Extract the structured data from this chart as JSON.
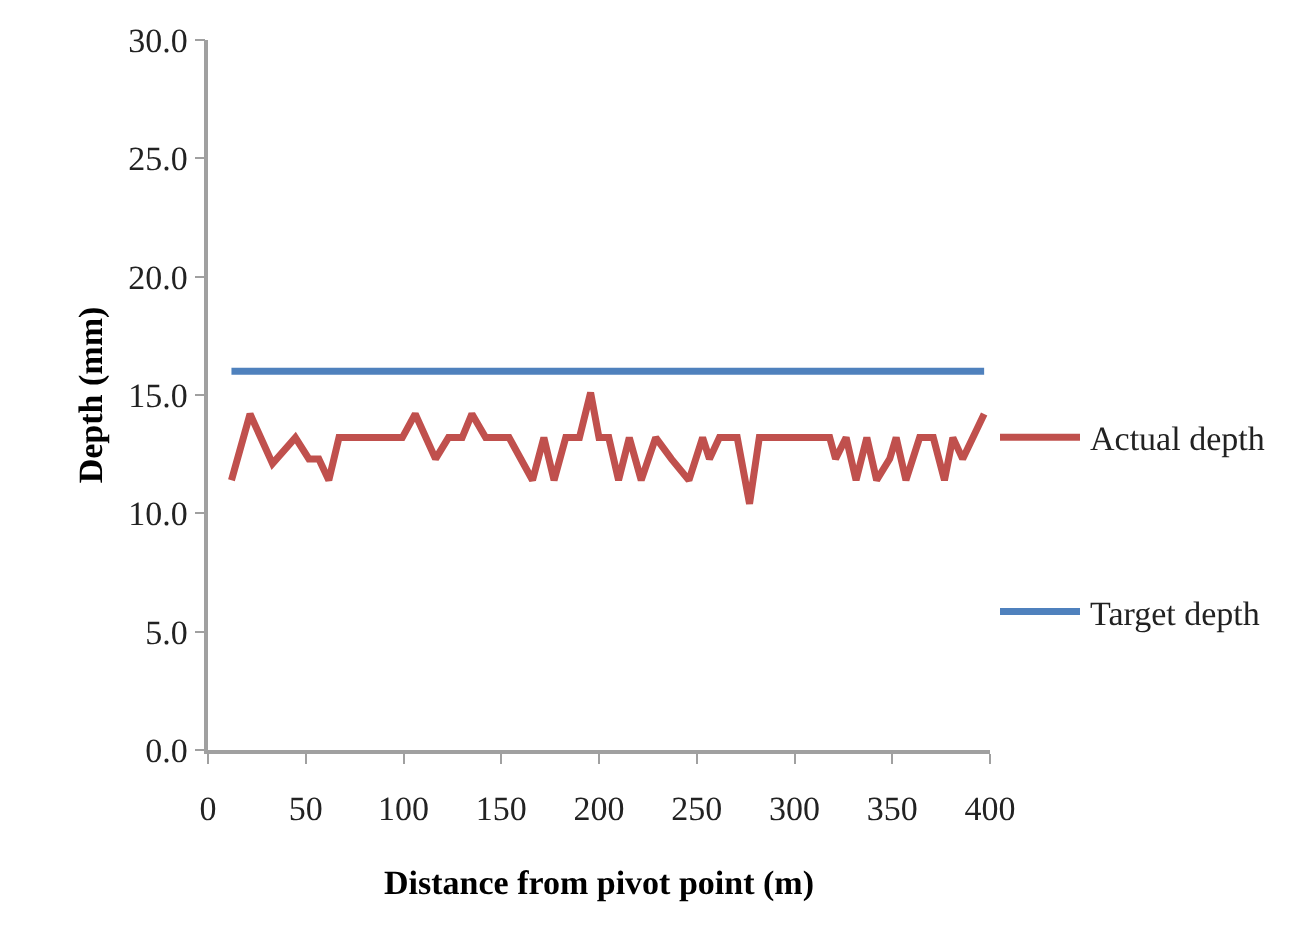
{
  "chart_data": {
    "type": "line",
    "xlabel": "Distance from pivot point (m)",
    "ylabel": "Depth (mm)",
    "series": [
      {
        "name": "Actual depth",
        "color": "#c0504d",
        "x": [
          12,
          21.5,
          33,
          44.7,
          51.6,
          56.7,
          61.8,
          67,
          99.4,
          106,
          116.4,
          123,
          130,
          135,
          142,
          154,
          166,
          171.8,
          177,
          183,
          190,
          195.7,
          200,
          205,
          210,
          215.5,
          221.6,
          229,
          237,
          246,
          253,
          256.5,
          261.6,
          270.7,
          277,
          282,
          318,
          321,
          326.4,
          331.5,
          337,
          342,
          348.7,
          352,
          357,
          364,
          371,
          376.7,
          381,
          386,
          397
        ],
        "values": [
          11.4,
          14.2,
          12.1,
          13.2,
          12.3,
          12.3,
          11.4,
          13.2,
          13.2,
          14.2,
          12.3,
          13.2,
          13.2,
          14.2,
          13.2,
          13.2,
          11.4,
          13.2,
          11.4,
          13.2,
          13.2,
          15.1,
          13.2,
          13.2,
          11.4,
          13.2,
          11.4,
          13.2,
          12.3,
          11.4,
          13.2,
          12.3,
          13.2,
          13.2,
          10.4,
          13.2,
          13.2,
          12.3,
          13.2,
          11.4,
          13.2,
          11.4,
          12.3,
          13.2,
          11.4,
          13.2,
          13.2,
          11.4,
          13.2,
          12.3,
          14.2
        ]
      },
      {
        "name": "Target depth",
        "color": "#4f81bd",
        "x": [
          12,
          397
        ],
        "values": [
          16.0,
          16.0
        ]
      }
    ],
    "xlim": [
      0,
      400
    ],
    "xticks": [
      0,
      50,
      100,
      150,
      200,
      250,
      300,
      350,
      400
    ],
    "ylim": [
      0,
      30
    ],
    "yticks": [
      {
        "value": 0,
        "label": "0.0"
      },
      {
        "value": 5,
        "label": "5.0"
      },
      {
        "value": 10,
        "label": "10.0"
      },
      {
        "value": 15,
        "label": "15.0"
      },
      {
        "value": 20,
        "label": "20.0"
      },
      {
        "value": 25,
        "label": "25.0"
      },
      {
        "value": 30,
        "label": "30.0"
      }
    ],
    "legend": "right",
    "marker": "none",
    "line_style": "solid"
  }
}
